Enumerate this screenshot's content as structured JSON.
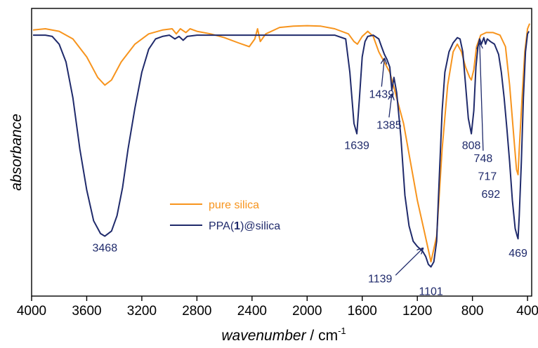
{
  "chart_data": {
    "type": "line",
    "xlabel": "wavenumber",
    "xunit": "cm",
    "xunit_exp": "-1",
    "ylabel": "absorbance",
    "xlim": [
      4000,
      370
    ],
    "x_reversed": true,
    "x_ticks": [
      "4000",
      "3600",
      "3200",
      "2800",
      "2400",
      "2000",
      "1600",
      "1200",
      "800",
      "400"
    ],
    "x_tick_values": [
      4000,
      3600,
      3200,
      2800,
      2400,
      2000,
      1600,
      1200,
      800,
      400
    ],
    "y_ticks_shown": false,
    "ylim": [
      0,
      1
    ],
    "grid": false,
    "legend_position": "center-left",
    "series": [
      {
        "name": "pure silica",
        "color": "#f7941d",
        "points": [
          [
            3990,
            0.035
          ],
          [
            3900,
            0.03
          ],
          [
            3800,
            0.04
          ],
          [
            3700,
            0.07
          ],
          [
            3600,
            0.14
          ],
          [
            3520,
            0.22
          ],
          [
            3468,
            0.25
          ],
          [
            3420,
            0.23
          ],
          [
            3350,
            0.16
          ],
          [
            3250,
            0.09
          ],
          [
            3150,
            0.05
          ],
          [
            3050,
            0.035
          ],
          [
            2980,
            0.03
          ],
          [
            2950,
            0.05
          ],
          [
            2920,
            0.03
          ],
          [
            2880,
            0.045
          ],
          [
            2850,
            0.03
          ],
          [
            2800,
            0.04
          ],
          [
            2700,
            0.05
          ],
          [
            2600,
            0.065
          ],
          [
            2500,
            0.085
          ],
          [
            2420,
            0.1
          ],
          [
            2380,
            0.07
          ],
          [
            2360,
            0.03
          ],
          [
            2340,
            0.08
          ],
          [
            2300,
            0.05
          ],
          [
            2200,
            0.025
          ],
          [
            2100,
            0.02
          ],
          [
            2000,
            0.018
          ],
          [
            1900,
            0.02
          ],
          [
            1800,
            0.03
          ],
          [
            1700,
            0.05
          ],
          [
            1660,
            0.08
          ],
          [
            1635,
            0.09
          ],
          [
            1600,
            0.06
          ],
          [
            1560,
            0.04
          ],
          [
            1520,
            0.06
          ],
          [
            1480,
            0.12
          ],
          [
            1440,
            0.16
          ],
          [
            1400,
            0.2
          ],
          [
            1360,
            0.28
          ],
          [
            1300,
            0.4
          ],
          [
            1250,
            0.55
          ],
          [
            1200,
            0.7
          ],
          [
            1150,
            0.82
          ],
          [
            1101,
            0.94
          ],
          [
            1060,
            0.84
          ],
          [
            1020,
            0.5
          ],
          [
            980,
            0.25
          ],
          [
            940,
            0.12
          ],
          [
            910,
            0.09
          ],
          [
            880,
            0.12
          ],
          [
            850,
            0.18
          ],
          [
            820,
            0.22
          ],
          [
            808,
            0.23
          ],
          [
            790,
            0.19
          ],
          [
            770,
            0.1
          ],
          [
            740,
            0.055
          ],
          [
            700,
            0.045
          ],
          [
            650,
            0.045
          ],
          [
            600,
            0.055
          ],
          [
            560,
            0.1
          ],
          [
            530,
            0.25
          ],
          [
            500,
            0.45
          ],
          [
            480,
            0.58
          ],
          [
            469,
            0.6
          ],
          [
            460,
            0.5
          ],
          [
            440,
            0.3
          ],
          [
            420,
            0.12
          ],
          [
            400,
            0.03
          ],
          [
            385,
            0.01
          ]
        ]
      },
      {
        "name": "PPA(1)@silica",
        "name_parts": [
          "PPA(",
          "1",
          ")@silica"
        ],
        "color": "#1f2a6b",
        "points": [
          [
            3990,
            0.055
          ],
          [
            3900,
            0.055
          ],
          [
            3850,
            0.06
          ],
          [
            3800,
            0.09
          ],
          [
            3750,
            0.16
          ],
          [
            3700,
            0.3
          ],
          [
            3650,
            0.5
          ],
          [
            3600,
            0.66
          ],
          [
            3550,
            0.78
          ],
          [
            3500,
            0.83
          ],
          [
            3468,
            0.84
          ],
          [
            3420,
            0.82
          ],
          [
            3380,
            0.76
          ],
          [
            3340,
            0.65
          ],
          [
            3300,
            0.5
          ],
          [
            3250,
            0.34
          ],
          [
            3200,
            0.2
          ],
          [
            3150,
            0.11
          ],
          [
            3100,
            0.07
          ],
          [
            3050,
            0.06
          ],
          [
            3000,
            0.055
          ],
          [
            2960,
            0.07
          ],
          [
            2930,
            0.06
          ],
          [
            2900,
            0.075
          ],
          [
            2870,
            0.06
          ],
          [
            2800,
            0.055
          ],
          [
            2600,
            0.055
          ],
          [
            2400,
            0.055
          ],
          [
            2200,
            0.055
          ],
          [
            2000,
            0.055
          ],
          [
            1800,
            0.055
          ],
          [
            1720,
            0.07
          ],
          [
            1690,
            0.2
          ],
          [
            1660,
            0.4
          ],
          [
            1639,
            0.44
          ],
          [
            1620,
            0.3
          ],
          [
            1600,
            0.14
          ],
          [
            1580,
            0.08
          ],
          [
            1560,
            0.06
          ],
          [
            1520,
            0.055
          ],
          [
            1480,
            0.07
          ],
          [
            1460,
            0.1
          ],
          [
            1439,
            0.13
          ],
          [
            1420,
            0.15
          ],
          [
            1400,
            0.18
          ],
          [
            1385,
            0.27
          ],
          [
            1370,
            0.22
          ],
          [
            1350,
            0.28
          ],
          [
            1320,
            0.45
          ],
          [
            1290,
            0.68
          ],
          [
            1260,
            0.8
          ],
          [
            1230,
            0.86
          ],
          [
            1200,
            0.88
          ],
          [
            1160,
            0.9
          ],
          [
            1139,
            0.92
          ],
          [
            1120,
            0.95
          ],
          [
            1101,
            0.96
          ],
          [
            1080,
            0.94
          ],
          [
            1060,
            0.86
          ],
          [
            1040,
            0.6
          ],
          [
            1020,
            0.35
          ],
          [
            1000,
            0.2
          ],
          [
            970,
            0.12
          ],
          [
            940,
            0.085
          ],
          [
            910,
            0.065
          ],
          [
            890,
            0.07
          ],
          [
            870,
            0.12
          ],
          [
            850,
            0.25
          ],
          [
            830,
            0.38
          ],
          [
            808,
            0.44
          ],
          [
            790,
            0.35
          ],
          [
            775,
            0.18
          ],
          [
            760,
            0.1
          ],
          [
            748,
            0.07
          ],
          [
            735,
            0.09
          ],
          [
            717,
            0.065
          ],
          [
            705,
            0.09
          ],
          [
            692,
            0.07
          ],
          [
            670,
            0.08
          ],
          [
            640,
            0.09
          ],
          [
            610,
            0.13
          ],
          [
            590,
            0.2
          ],
          [
            570,
            0.3
          ],
          [
            550,
            0.42
          ],
          [
            530,
            0.55
          ],
          [
            510,
            0.7
          ],
          [
            490,
            0.81
          ],
          [
            475,
            0.84
          ],
          [
            469,
            0.85
          ],
          [
            460,
            0.76
          ],
          [
            445,
            0.55
          ],
          [
            430,
            0.3
          ],
          [
            415,
            0.12
          ],
          [
            400,
            0.05
          ],
          [
            390,
            0.04
          ]
        ]
      }
    ],
    "annotations": [
      {
        "text": "3468",
        "x": 3468,
        "y": 0.84,
        "label_y": 0.9
      },
      {
        "text": "1639",
        "x": 1639,
        "y": 0.44,
        "label_y": 0.5
      },
      {
        "text": "1439",
        "x": 1439,
        "y": 0.13,
        "label_y": 0.3,
        "arrow": true
      },
      {
        "text": "1385",
        "x": 1385,
        "y": 0.27,
        "label_y": 0.42,
        "arrow": true
      },
      {
        "text": "1139",
        "x": 1139,
        "y": 0.92,
        "label_y": 1.02,
        "arrow": true
      },
      {
        "text": "1101",
        "x": 1101,
        "y": 0.96,
        "label_y": 1.07
      },
      {
        "text": "808",
        "x": 808,
        "y": 0.44,
        "label_y": 0.5
      },
      {
        "text": "748",
        "x": 748,
        "y": 0.07,
        "label_y": 0.55,
        "arrow": true
      },
      {
        "text": "717",
        "x": 717,
        "label_y": 0.62
      },
      {
        "text": "692",
        "x": 692,
        "label_y": 0.69
      },
      {
        "text": "469",
        "x": 469,
        "y": 0.85,
        "label_y": 0.92
      }
    ]
  }
}
